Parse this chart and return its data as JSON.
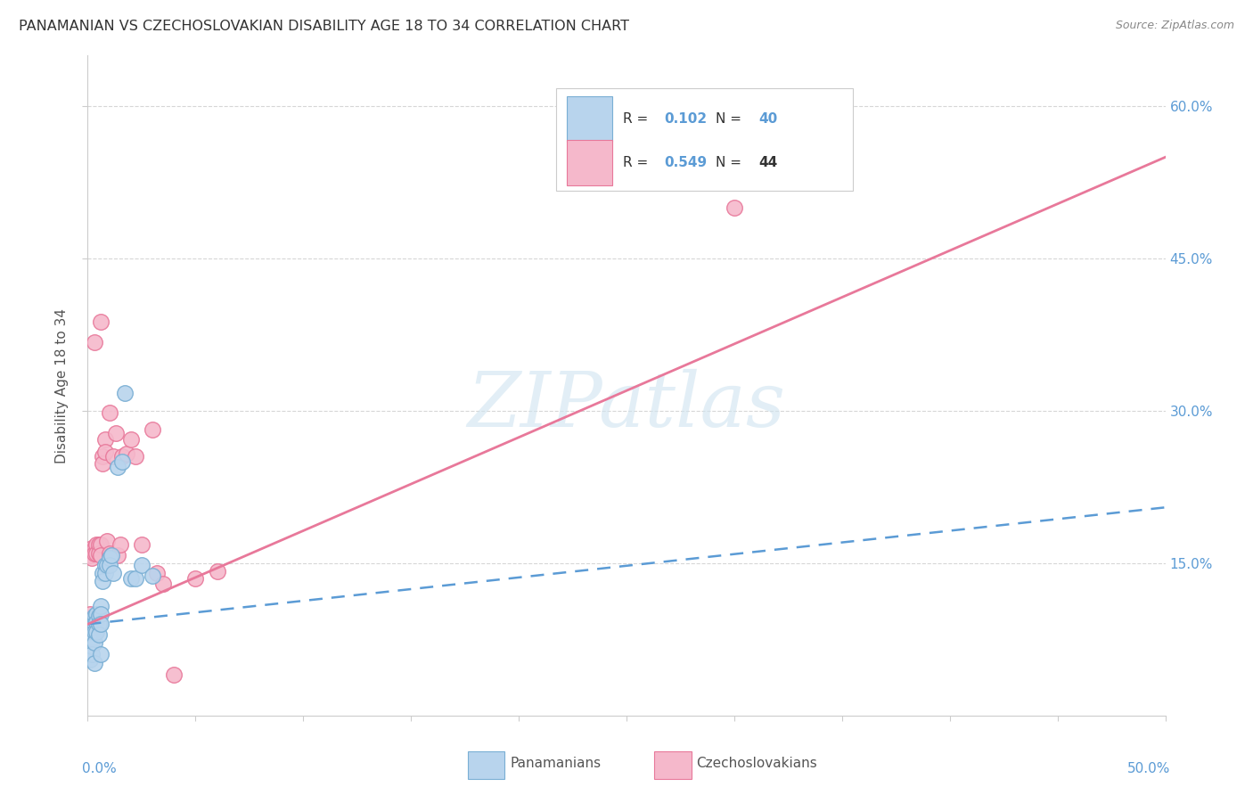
{
  "title": "PANAMANIAN VS CZECHOSLOVAKIAN DISABILITY AGE 18 TO 34 CORRELATION CHART",
  "source": "Source: ZipAtlas.com",
  "ylabel": "Disability Age 18 to 34",
  "panamanian_color": "#b8d4ed",
  "panamanian_edge": "#7aafd4",
  "czechoslovakian_color": "#f5b8cb",
  "czechoslovakian_edge": "#e8789a",
  "pan_line_color": "#5b9bd5",
  "cze_line_color": "#e8789a",
  "watermark_color": "#d0e4f0",
  "watermark_text": "ZIPatlas",
  "xlim": [
    0.0,
    0.5
  ],
  "ylim": [
    0.0,
    0.65
  ],
  "ytick_vals": [
    0.15,
    0.3,
    0.45,
    0.6
  ],
  "ytick_labels": [
    "15.0%",
    "30.0%",
    "45.0%",
    "60.0%"
  ],
  "pan_x": [
    0.001,
    0.001,
    0.001,
    0.001,
    0.002,
    0.002,
    0.002,
    0.002,
    0.002,
    0.003,
    0.003,
    0.003,
    0.003,
    0.004,
    0.004,
    0.004,
    0.005,
    0.005,
    0.005,
    0.006,
    0.006,
    0.006,
    0.007,
    0.007,
    0.008,
    0.008,
    0.009,
    0.01,
    0.01,
    0.011,
    0.012,
    0.014,
    0.016,
    0.017,
    0.02,
    0.022,
    0.025,
    0.03,
    0.003,
    0.006
  ],
  "pan_y": [
    0.075,
    0.068,
    0.062,
    0.055,
    0.09,
    0.082,
    0.075,
    0.068,
    0.06,
    0.098,
    0.09,
    0.082,
    0.072,
    0.1,
    0.092,
    0.082,
    0.098,
    0.09,
    0.08,
    0.108,
    0.1,
    0.09,
    0.14,
    0.132,
    0.148,
    0.14,
    0.148,
    0.155,
    0.148,
    0.158,
    0.14,
    0.245,
    0.25,
    0.318,
    0.135,
    0.135,
    0.148,
    0.138,
    0.052,
    0.06
  ],
  "cze_x": [
    0.001,
    0.001,
    0.001,
    0.002,
    0.002,
    0.002,
    0.003,
    0.003,
    0.003,
    0.003,
    0.004,
    0.004,
    0.004,
    0.005,
    0.005,
    0.006,
    0.006,
    0.007,
    0.007,
    0.008,
    0.008,
    0.009,
    0.01,
    0.01,
    0.011,
    0.012,
    0.013,
    0.014,
    0.015,
    0.016,
    0.018,
    0.02,
    0.022,
    0.025,
    0.03,
    0.032,
    0.035,
    0.04,
    0.05,
    0.06,
    0.003,
    0.006,
    0.01,
    0.3
  ],
  "cze_y": [
    0.092,
    0.158,
    0.1,
    0.165,
    0.155,
    0.095,
    0.165,
    0.16,
    0.095,
    0.09,
    0.168,
    0.16,
    0.098,
    0.168,
    0.16,
    0.168,
    0.158,
    0.255,
    0.248,
    0.272,
    0.26,
    0.172,
    0.16,
    0.155,
    0.158,
    0.255,
    0.278,
    0.158,
    0.168,
    0.255,
    0.258,
    0.272,
    0.255,
    0.168,
    0.282,
    0.14,
    0.13,
    0.04,
    0.135,
    0.142,
    0.368,
    0.388,
    0.298,
    0.5
  ],
  "pan_line_x": [
    0.0,
    0.5
  ],
  "pan_line_y": [
    0.09,
    0.205
  ],
  "cze_line_x": [
    0.0,
    0.5
  ],
  "cze_line_y": [
    0.09,
    0.55
  ],
  "legend_items": [
    {
      "label": "R =  0.102   N = 40",
      "r_val": "0.102",
      "n_val": "40"
    },
    {
      "label": "R =  0.549   N = 44",
      "r_val": "0.549",
      "n_val": "44"
    }
  ]
}
